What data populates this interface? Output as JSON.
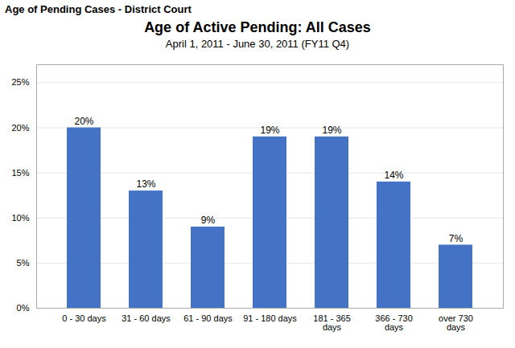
{
  "chart_data": {
    "type": "bar",
    "annotations": [
      "Age of Pending Cases - District Court"
    ],
    "title": "Age of Active Pending: All Cases",
    "subtitle": "April 1, 2011 - June 30, 2011 (FY11 Q4)",
    "categories": [
      "0 - 30 days",
      "31 - 60 days",
      "61 - 90 days",
      "91 - 180 days",
      "181 - 365\ndays",
      "366 - 730\ndays",
      "over 730\ndays"
    ],
    "values": [
      20,
      13,
      9,
      19,
      19,
      14,
      7
    ],
    "value_labels": [
      "20%",
      "13%",
      "9%",
      "19%",
      "19%",
      "14%",
      "7%"
    ],
    "data_labels": true,
    "color": "#4472C4",
    "ylim": [
      0,
      27
    ],
    "yticks": [
      {
        "value": 0,
        "label": "0%"
      },
      {
        "value": 5,
        "label": "5%"
      },
      {
        "value": 10,
        "label": "10%"
      },
      {
        "value": 15,
        "label": "15%"
      },
      {
        "value": 20,
        "label": "20%"
      },
      {
        "value": 25,
        "label": "25%"
      }
    ],
    "grid": true
  }
}
